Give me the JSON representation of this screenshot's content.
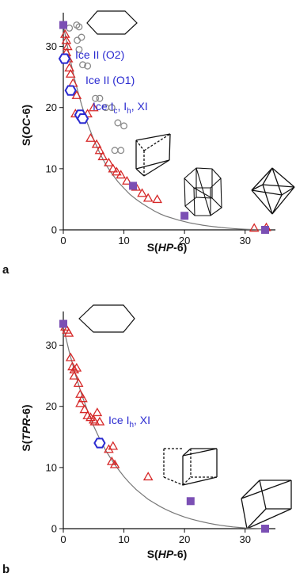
{
  "colors": {
    "triangle": "#d62828",
    "circle": "#888888",
    "hexagon": "#2a2ad0",
    "square": "#7b4fb4",
    "curve": "#777777",
    "annotation": "#2a2ad0"
  },
  "panels": [
    {
      "letter": "a",
      "xlabel": {
        "pre": "S(",
        "em": "HP",
        "post": "-6)"
      },
      "ylabel": {
        "pre": "S(",
        "em": "OC",
        "post": "-6)"
      },
      "annotations": [
        {
          "key": "ice2_o2",
          "text": "Ice II (O2)"
        },
        {
          "key": "ice2_o1",
          "text": "Ice II (O1)"
        },
        {
          "key": "ice_ic",
          "pre": "Ice I",
          "sub1": "c",
          "mid": ", I",
          "sub2": "h",
          "post": ", XI"
        }
      ],
      "polyhedra": [
        "hexagon-icon",
        "trigonal-prism-icon",
        "hexagonal-prism-icon",
        "octahedron-icon"
      ]
    },
    {
      "letter": "b",
      "xlabel": {
        "pre": "S(",
        "em": "HP",
        "post": "-6)"
      },
      "ylabel": {
        "pre": "S(",
        "em": "TPR",
        "post": "-6)"
      },
      "annotations": [
        {
          "key": "ice_ih",
          "text": "Ice I",
          "sub": "h",
          "post": ", XI"
        }
      ],
      "polyhedra": [
        "hexagon-icon",
        "trigonal-prism-icon",
        "trigonal-prism-icon"
      ]
    }
  ],
  "chart_data": [
    {
      "type": "scatter",
      "xlabel": "S(HP-6)",
      "ylabel": "S(OC-6)",
      "xlim": [
        0,
        35
      ],
      "ylim": [
        0,
        35
      ],
      "xticks": [
        0,
        10,
        20,
        30
      ],
      "yticks": [
        0,
        10,
        20,
        30
      ],
      "grid": false,
      "series": [
        {
          "marker": "triangle",
          "points": [
            [
              0.3,
              32
            ],
            [
              0.5,
              31
            ],
            [
              0.7,
              30
            ],
            [
              0.5,
              29
            ],
            [
              0.8,
              28
            ],
            [
              1.0,
              26.5
            ],
            [
              1.2,
              25.5
            ],
            [
              1.6,
              24
            ],
            [
              2.2,
              22
            ],
            [
              2.0,
              19
            ],
            [
              3.1,
              18.5
            ],
            [
              4.0,
              19
            ],
            [
              5.0,
              20
            ],
            [
              4.5,
              15
            ],
            [
              5.5,
              14
            ],
            [
              6.0,
              13
            ],
            [
              6.5,
              12
            ],
            [
              7.5,
              11
            ],
            [
              8.2,
              10
            ],
            [
              8.8,
              9.5
            ],
            [
              9.5,
              9
            ],
            [
              10.5,
              8
            ],
            [
              12.0,
              7
            ],
            [
              13.0,
              6
            ],
            [
              14.0,
              5.2
            ],
            [
              15.5,
              5
            ],
            [
              31.5,
              0.3
            ],
            [
              33.5,
              0.4
            ]
          ]
        },
        {
          "marker": "circle",
          "points": [
            [
              1.0,
              33
            ],
            [
              2.2,
              33.5
            ],
            [
              2.6,
              33.2
            ],
            [
              2.3,
              31
            ],
            [
              2.6,
              29.5
            ],
            [
              3.0,
              31.5
            ],
            [
              3.2,
              27
            ],
            [
              4.0,
              26.8
            ],
            [
              5.3,
              21.5
            ],
            [
              6.0,
              21.5
            ],
            [
              7.0,
              20
            ],
            [
              8.0,
              20
            ],
            [
              9.0,
              17.5
            ],
            [
              10.0,
              17
            ],
            [
              8.5,
              13
            ],
            [
              9.5,
              13
            ]
          ]
        },
        {
          "marker": "hexagon",
          "points": [
            [
              0.2,
              28
            ],
            [
              1.2,
              22.8
            ],
            [
              2.8,
              18.8
            ],
            [
              3.2,
              18.2
            ]
          ]
        },
        {
          "marker": "square",
          "points": [
            [
              0,
              33.5
            ],
            [
              11.5,
              7.2
            ],
            [
              20.0,
              2.3
            ],
            [
              33.3,
              0
            ]
          ]
        }
      ],
      "curve": [
        [
          0,
          33.5
        ],
        [
          1,
          28.4
        ],
        [
          2,
          24.1
        ],
        [
          3,
          20.5
        ],
        [
          4,
          17.4
        ],
        [
          5,
          14.8
        ],
        [
          6,
          12.6
        ],
        [
          7,
          10.7
        ],
        [
          8,
          9.2
        ],
        [
          9,
          7.9
        ],
        [
          10,
          6.8
        ],
        [
          11,
          5.8
        ],
        [
          12,
          5.0
        ],
        [
          13,
          4.3
        ],
        [
          14,
          3.7
        ],
        [
          15,
          3.1
        ],
        [
          16,
          2.6
        ],
        [
          17,
          2.2
        ],
        [
          18,
          1.9
        ],
        [
          19,
          1.6
        ],
        [
          20,
          1.35
        ],
        [
          21,
          1.12
        ],
        [
          22,
          0.93
        ],
        [
          23,
          0.76
        ],
        [
          24,
          0.62
        ],
        [
          25,
          0.5
        ],
        [
          26,
          0.39
        ],
        [
          27,
          0.3
        ],
        [
          28,
          0.22
        ],
        [
          29,
          0.15
        ],
        [
          30,
          0.1
        ],
        [
          31,
          0.06
        ],
        [
          32,
          0.03
        ],
        [
          33.3,
          0
        ]
      ]
    },
    {
      "type": "scatter",
      "xlabel": "S(HP-6)",
      "ylabel": "S(TPR-6)",
      "xlim": [
        0,
        35
      ],
      "ylim": [
        0,
        35
      ],
      "xticks": [
        0,
        10,
        20,
        30
      ],
      "yticks": [
        0,
        10,
        20,
        30
      ],
      "grid": false,
      "series": [
        {
          "marker": "triangle",
          "points": [
            [
              0.3,
              33
            ],
            [
              0.6,
              32.5
            ],
            [
              0.9,
              32
            ],
            [
              1.2,
              28
            ],
            [
              1.5,
              26.5
            ],
            [
              1.8,
              26
            ],
            [
              2.2,
              26.3
            ],
            [
              1.8,
              25
            ],
            [
              2.5,
              23.8
            ],
            [
              2.8,
              22
            ],
            [
              3.2,
              21.3
            ],
            [
              2.8,
              20.5
            ],
            [
              3.5,
              19.5
            ],
            [
              4.0,
              18.5
            ],
            [
              4.5,
              18.2
            ],
            [
              5.0,
              17.8
            ],
            [
              5.2,
              17.5
            ],
            [
              5.6,
              19
            ],
            [
              6.0,
              17.5
            ],
            [
              8.2,
              13.5
            ],
            [
              7.5,
              13
            ],
            [
              8.0,
              11
            ],
            [
              8.5,
              10.5
            ],
            [
              14.0,
              8.5
            ]
          ]
        },
        {
          "marker": "hexagon",
          "points": [
            [
              6.0,
              14
            ]
          ]
        },
        {
          "marker": "square",
          "points": [
            [
              0,
              33.5
            ],
            [
              21.0,
              4.5
            ],
            [
              33.3,
              0
            ]
          ]
        }
      ],
      "curve": [
        [
          0,
          33
        ],
        [
          1,
          28.8
        ],
        [
          2,
          25.2
        ],
        [
          3,
          22.0
        ],
        [
          4,
          19.3
        ],
        [
          5,
          16.8
        ],
        [
          6,
          14.7
        ],
        [
          7,
          12.8
        ],
        [
          8,
          11.2
        ],
        [
          9,
          9.8
        ],
        [
          10,
          8.5
        ],
        [
          11,
          7.4
        ],
        [
          12,
          6.4
        ],
        [
          13,
          5.6
        ],
        [
          14,
          4.8
        ],
        [
          15,
          4.2
        ],
        [
          16,
          3.6
        ],
        [
          17,
          3.1
        ],
        [
          18,
          2.65
        ],
        [
          19,
          2.25
        ],
        [
          20,
          1.9
        ],
        [
          21,
          1.6
        ],
        [
          22,
          1.33
        ],
        [
          23,
          1.1
        ],
        [
          24,
          0.88
        ],
        [
          25,
          0.7
        ],
        [
          26,
          0.54
        ],
        [
          27,
          0.4
        ],
        [
          28,
          0.29
        ],
        [
          29,
          0.19
        ],
        [
          30,
          0.12
        ],
        [
          31,
          0.06
        ],
        [
          32,
          0.02
        ],
        [
          33.3,
          0
        ]
      ]
    }
  ]
}
